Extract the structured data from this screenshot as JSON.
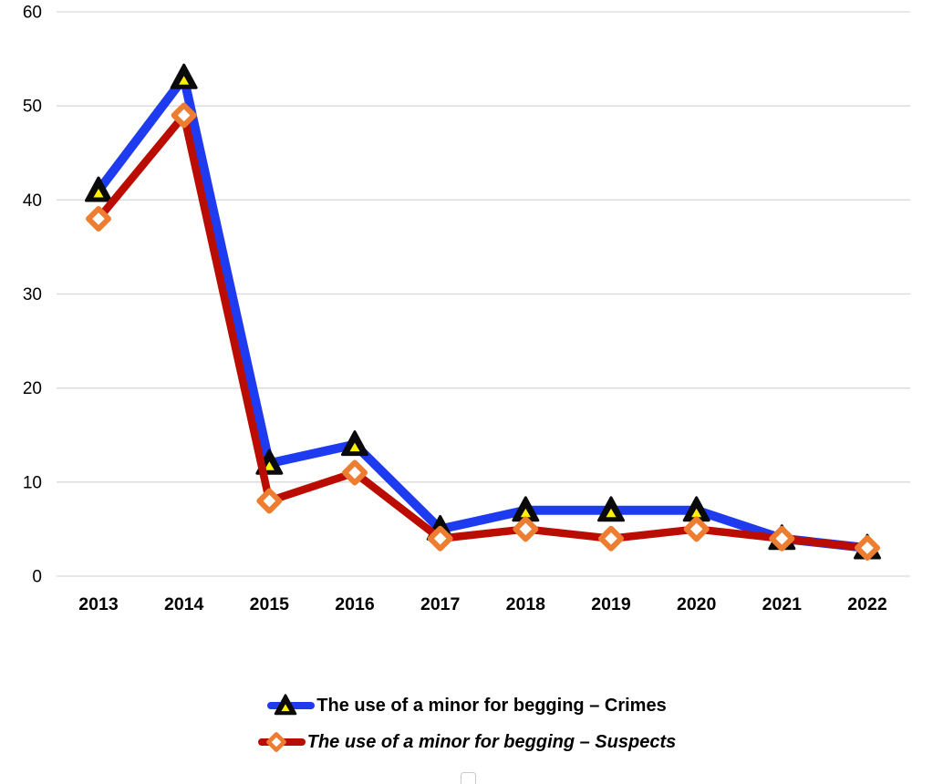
{
  "chart_data": {
    "type": "line",
    "title": "",
    "xlabel": "",
    "ylabel": "",
    "categories": [
      "2013",
      "2014",
      "2015",
      "2016",
      "2017",
      "2018",
      "2019",
      "2020",
      "2021",
      "2022"
    ],
    "series": [
      {
        "name": "The use of a minor for begging – Crimes",
        "values": [
          41,
          53,
          12,
          14,
          5,
          7,
          7,
          7,
          4,
          3
        ],
        "color": "#1F3BF0",
        "line_width": 10,
        "marker": "triangle",
        "marker_fill": "#0a0a0a",
        "marker_inner": "#FFF100",
        "legend_style": "bold"
      },
      {
        "name": "The use of a minor for begging – Suspects",
        "values": [
          38,
          49,
          8,
          11,
          4,
          5,
          4,
          5,
          4,
          3
        ],
        "color": "#BB0C01",
        "line_width": 8.5,
        "marker": "diamond",
        "marker_fill": "#ED7D31",
        "marker_inner": "#FFFFFF",
        "legend_style": "bold-italic"
      }
    ],
    "ylim": [
      0,
      60
    ],
    "yticks": [
      0,
      10,
      20,
      30,
      40,
      50,
      60
    ],
    "grid": "horizontal",
    "gridline_color": "#D9D9D9",
    "tick_label_color": "#000000",
    "legend_position": "bottom-center"
  }
}
